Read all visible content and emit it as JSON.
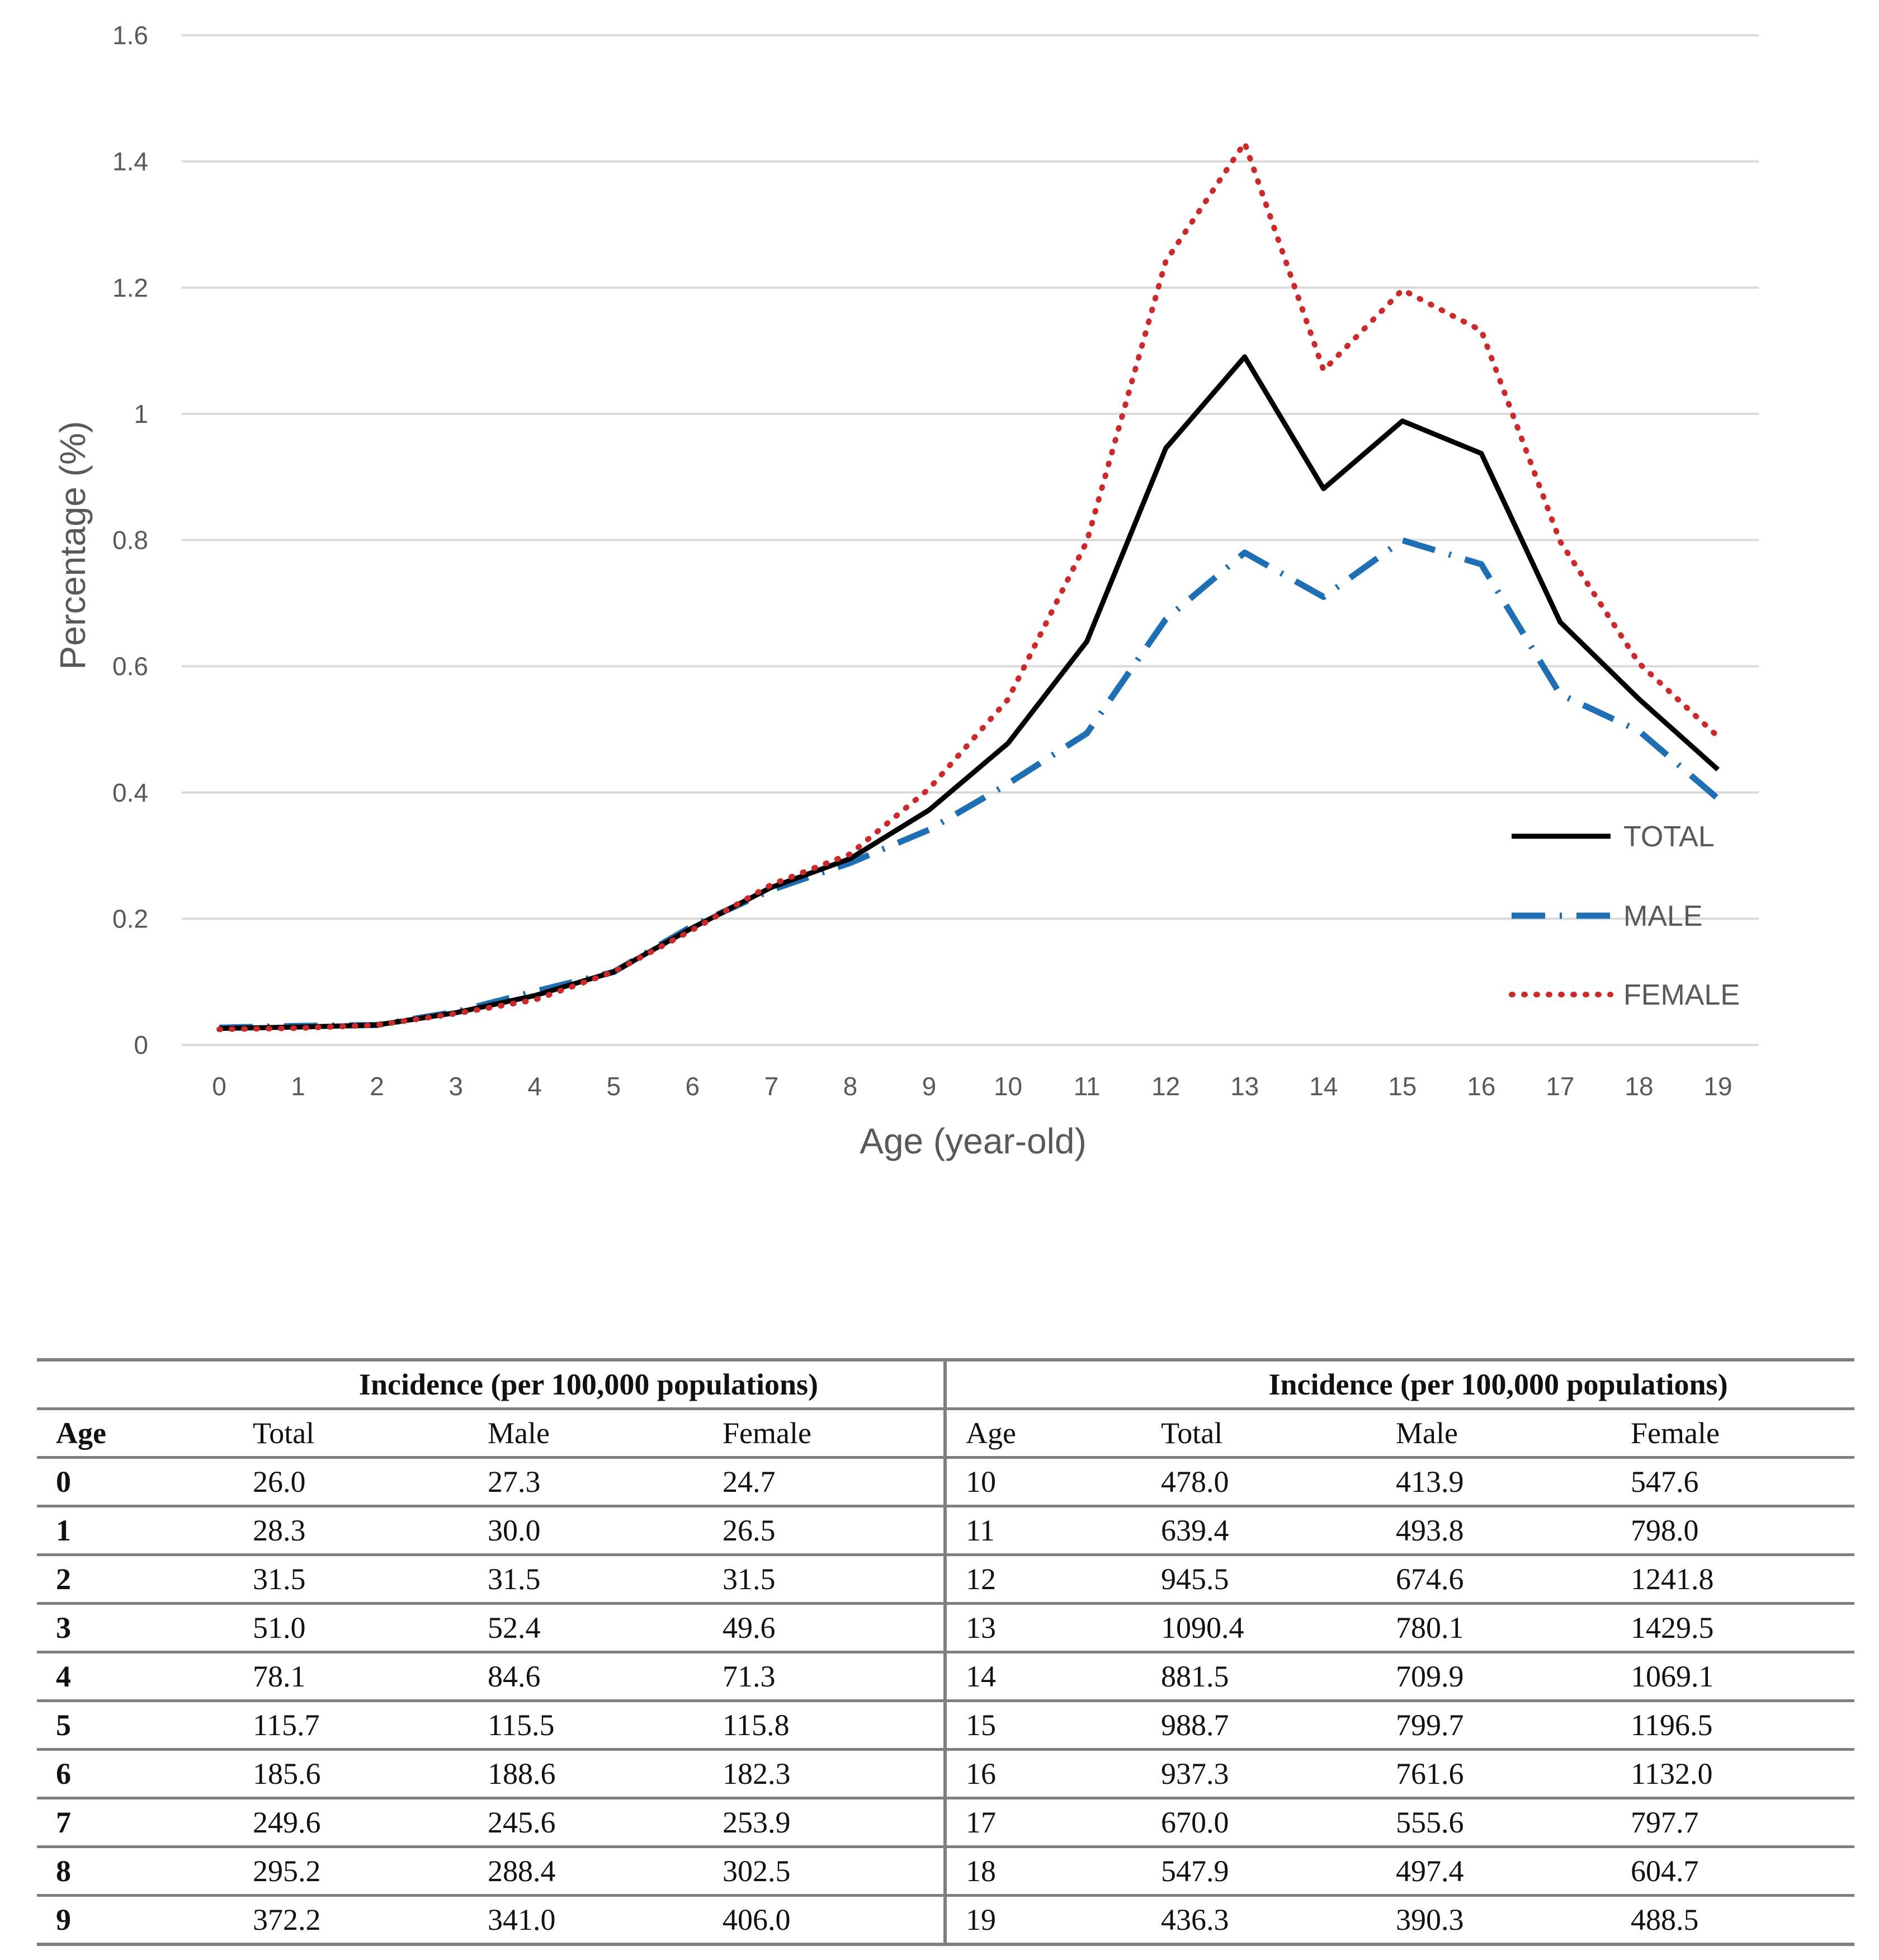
{
  "chart_data": {
    "type": "line",
    "title": "",
    "xlabel": "Age (year-old)",
    "ylabel": "Percentage (%)",
    "ylim": [
      0,
      1.6
    ],
    "y_ticks": [
      "0",
      "0.2",
      "0.4",
      "0.6",
      "0.8",
      "1",
      "1.2",
      "1.4",
      "1.6"
    ],
    "y_tick_values": [
      0,
      0.2,
      0.4,
      0.6,
      0.8,
      1.0,
      1.2,
      1.4,
      1.6
    ],
    "categories": [
      "0",
      "1",
      "2",
      "3",
      "4",
      "5",
      "6",
      "7",
      "8",
      "9",
      "10",
      "11",
      "12",
      "13",
      "14",
      "15",
      "16",
      "17",
      "18",
      "19"
    ],
    "grid": true,
    "legend_position": "right",
    "series": [
      {
        "name": "TOTAL",
        "color": "#000000",
        "style": "solid",
        "values": [
          0.026,
          0.0283,
          0.0315,
          0.051,
          0.0781,
          0.1157,
          0.1856,
          0.2496,
          0.2952,
          0.3722,
          0.478,
          0.6394,
          0.9455,
          1.0904,
          0.8815,
          0.9887,
          0.9373,
          0.67,
          0.5479,
          0.4363
        ]
      },
      {
        "name": "MALE",
        "color": "#1f6fb5",
        "style": "dashdot",
        "values": [
          0.0273,
          0.03,
          0.0315,
          0.0524,
          0.0846,
          0.1155,
          0.1886,
          0.2456,
          0.2884,
          0.341,
          0.4139,
          0.4938,
          0.6746,
          0.7801,
          0.7099,
          0.7997,
          0.7616,
          0.5556,
          0.4974,
          0.3903
        ]
      },
      {
        "name": "FEMALE",
        "color": "#cc2a2a",
        "style": "dotted",
        "values": [
          0.0247,
          0.0265,
          0.0315,
          0.0496,
          0.0713,
          0.1158,
          0.1823,
          0.2539,
          0.3025,
          0.406,
          0.5476,
          0.798,
          1.2418,
          1.4295,
          1.0691,
          1.1965,
          1.132,
          0.7977,
          0.6047,
          0.4885
        ]
      }
    ]
  },
  "table": {
    "group_header": "Incidence (per 100,000 populations)",
    "columns": [
      "Age",
      "Total",
      "Male",
      "Female"
    ],
    "left_rows": [
      [
        "0",
        "26.0",
        "27.3",
        "24.7"
      ],
      [
        "1",
        "28.3",
        "30.0",
        "26.5"
      ],
      [
        "2",
        "31.5",
        "31.5",
        "31.5"
      ],
      [
        "3",
        "51.0",
        "52.4",
        "49.6"
      ],
      [
        "4",
        "78.1",
        "84.6",
        "71.3"
      ],
      [
        "5",
        "115.7",
        "115.5",
        "115.8"
      ],
      [
        "6",
        "185.6",
        "188.6",
        "182.3"
      ],
      [
        "7",
        "249.6",
        "245.6",
        "253.9"
      ],
      [
        "8",
        "295.2",
        "288.4",
        "302.5"
      ],
      [
        "9",
        "372.2",
        "341.0",
        "406.0"
      ]
    ],
    "right_rows": [
      [
        "10",
        "478.0",
        "413.9",
        "547.6"
      ],
      [
        "11",
        "639.4",
        "493.8",
        "798.0"
      ],
      [
        "12",
        "945.5",
        "674.6",
        "1241.8"
      ],
      [
        "13",
        "1090.4",
        "780.1",
        "1429.5"
      ],
      [
        "14",
        "881.5",
        "709.9",
        "1069.1"
      ],
      [
        "15",
        "988.7",
        "799.7",
        "1196.5"
      ],
      [
        "16",
        "937.3",
        "761.6",
        "1132.0"
      ],
      [
        "17",
        "670.0",
        "555.6",
        "797.7"
      ],
      [
        "18",
        "547.9",
        "497.4",
        "604.7"
      ],
      [
        "19",
        "436.3",
        "390.3",
        "488.5"
      ]
    ]
  }
}
